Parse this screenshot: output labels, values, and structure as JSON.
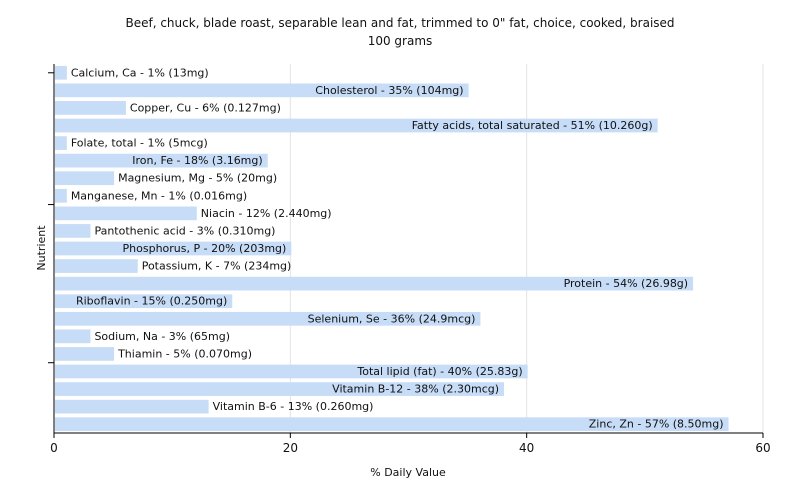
{
  "chart_data": {
    "type": "bar",
    "orientation": "horizontal",
    "title": "Beef, chuck, blade roast, separable lean and fat, trimmed to 0\" fat, choice, cooked, braised",
    "subtitle": "100 grams",
    "xlabel": "% Daily Value",
    "ylabel": "Nutrient",
    "xlim": [
      0,
      60
    ],
    "xticks": [
      0,
      20,
      40,
      60
    ],
    "grid": true,
    "categories": [
      "Calcium, Ca",
      "Cholesterol",
      "Copper, Cu",
      "Fatty acids, total saturated",
      "Folate, total",
      "Iron, Fe",
      "Magnesium, Mg",
      "Manganese, Mn",
      "Niacin",
      "Pantothenic acid",
      "Phosphorus, P",
      "Potassium, K",
      "Protein",
      "Riboflavin",
      "Selenium, Se",
      "Sodium, Na",
      "Thiamin",
      "Total lipid (fat)",
      "Vitamin B-12",
      "Vitamin B-6",
      "Zinc, Zn"
    ],
    "values": [
      1,
      35,
      6,
      51,
      1,
      18,
      5,
      1,
      12,
      3,
      20,
      7,
      54,
      15,
      36,
      3,
      5,
      40,
      38,
      13,
      57
    ],
    "labels": [
      "Calcium, Ca - 1% (13mg)",
      "Cholesterol - 35% (104mg)",
      "Copper, Cu - 6% (0.127mg)",
      "Fatty acids, total saturated - 51% (10.260g)",
      "Folate, total - 1% (5mcg)",
      "Iron, Fe - 18% (3.16mg)",
      "Magnesium, Mg - 5% (20mg)",
      "Manganese, Mn - 1% (0.016mg)",
      "Niacin - 12% (2.440mg)",
      "Pantothenic acid - 3% (0.310mg)",
      "Phosphorus, P - 20% (203mg)",
      "Potassium, K - 7% (234mg)",
      "Protein - 54% (26.98g)",
      "Riboflavin - 15% (0.250mg)",
      "Selenium, Se - 36% (24.9mcg)",
      "Sodium, Na - 3% (65mg)",
      "Thiamin - 5% (0.070mg)",
      "Total lipid (fat) - 40% (25.83g)",
      "Vitamin B-12 - 38% (2.30mcg)",
      "Vitamin B-6 - 13% (0.260mg)",
      "Zinc, Zn - 57% (8.50mg)"
    ],
    "colors": {
      "bar": "#c6dcf7",
      "grid": "#e4e4e4",
      "axis": "#000000"
    }
  }
}
